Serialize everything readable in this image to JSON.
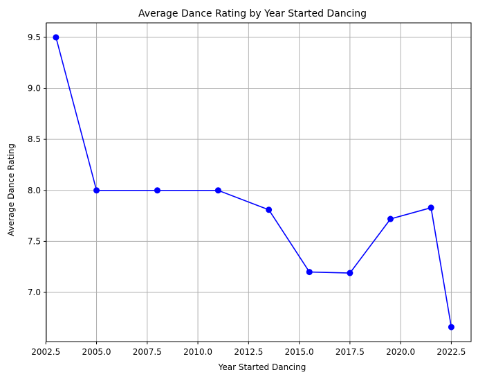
{
  "chart_data": {
    "type": "line",
    "title": "Average Dance Rating by Year Started Dancing",
    "xlabel": "Year Started Dancing",
    "ylabel": "Average Dance Rating",
    "xlim": [
      2002.525,
      2023.475
    ],
    "ylim": [
      6.518,
      9.642
    ],
    "x_ticks": [
      2002.5,
      2005.0,
      2007.5,
      2010.0,
      2012.5,
      2015.0,
      2017.5,
      2020.0,
      2022.5
    ],
    "y_ticks": [
      7.0,
      7.5,
      8.0,
      8.5,
      9.0,
      9.5
    ],
    "grid": true,
    "legend": "none",
    "series": [
      {
        "color": "#0000ff",
        "marker": "circle",
        "x": [
          2003,
          2005,
          2008,
          2011,
          2013.5,
          2015.5,
          2017.5,
          2019.5,
          2021.5,
          2022.5
        ],
        "y": [
          9.5,
          8.0,
          8.0,
          8.0,
          7.81,
          7.2,
          7.19,
          7.72,
          7.83,
          6.66
        ]
      }
    ]
  }
}
